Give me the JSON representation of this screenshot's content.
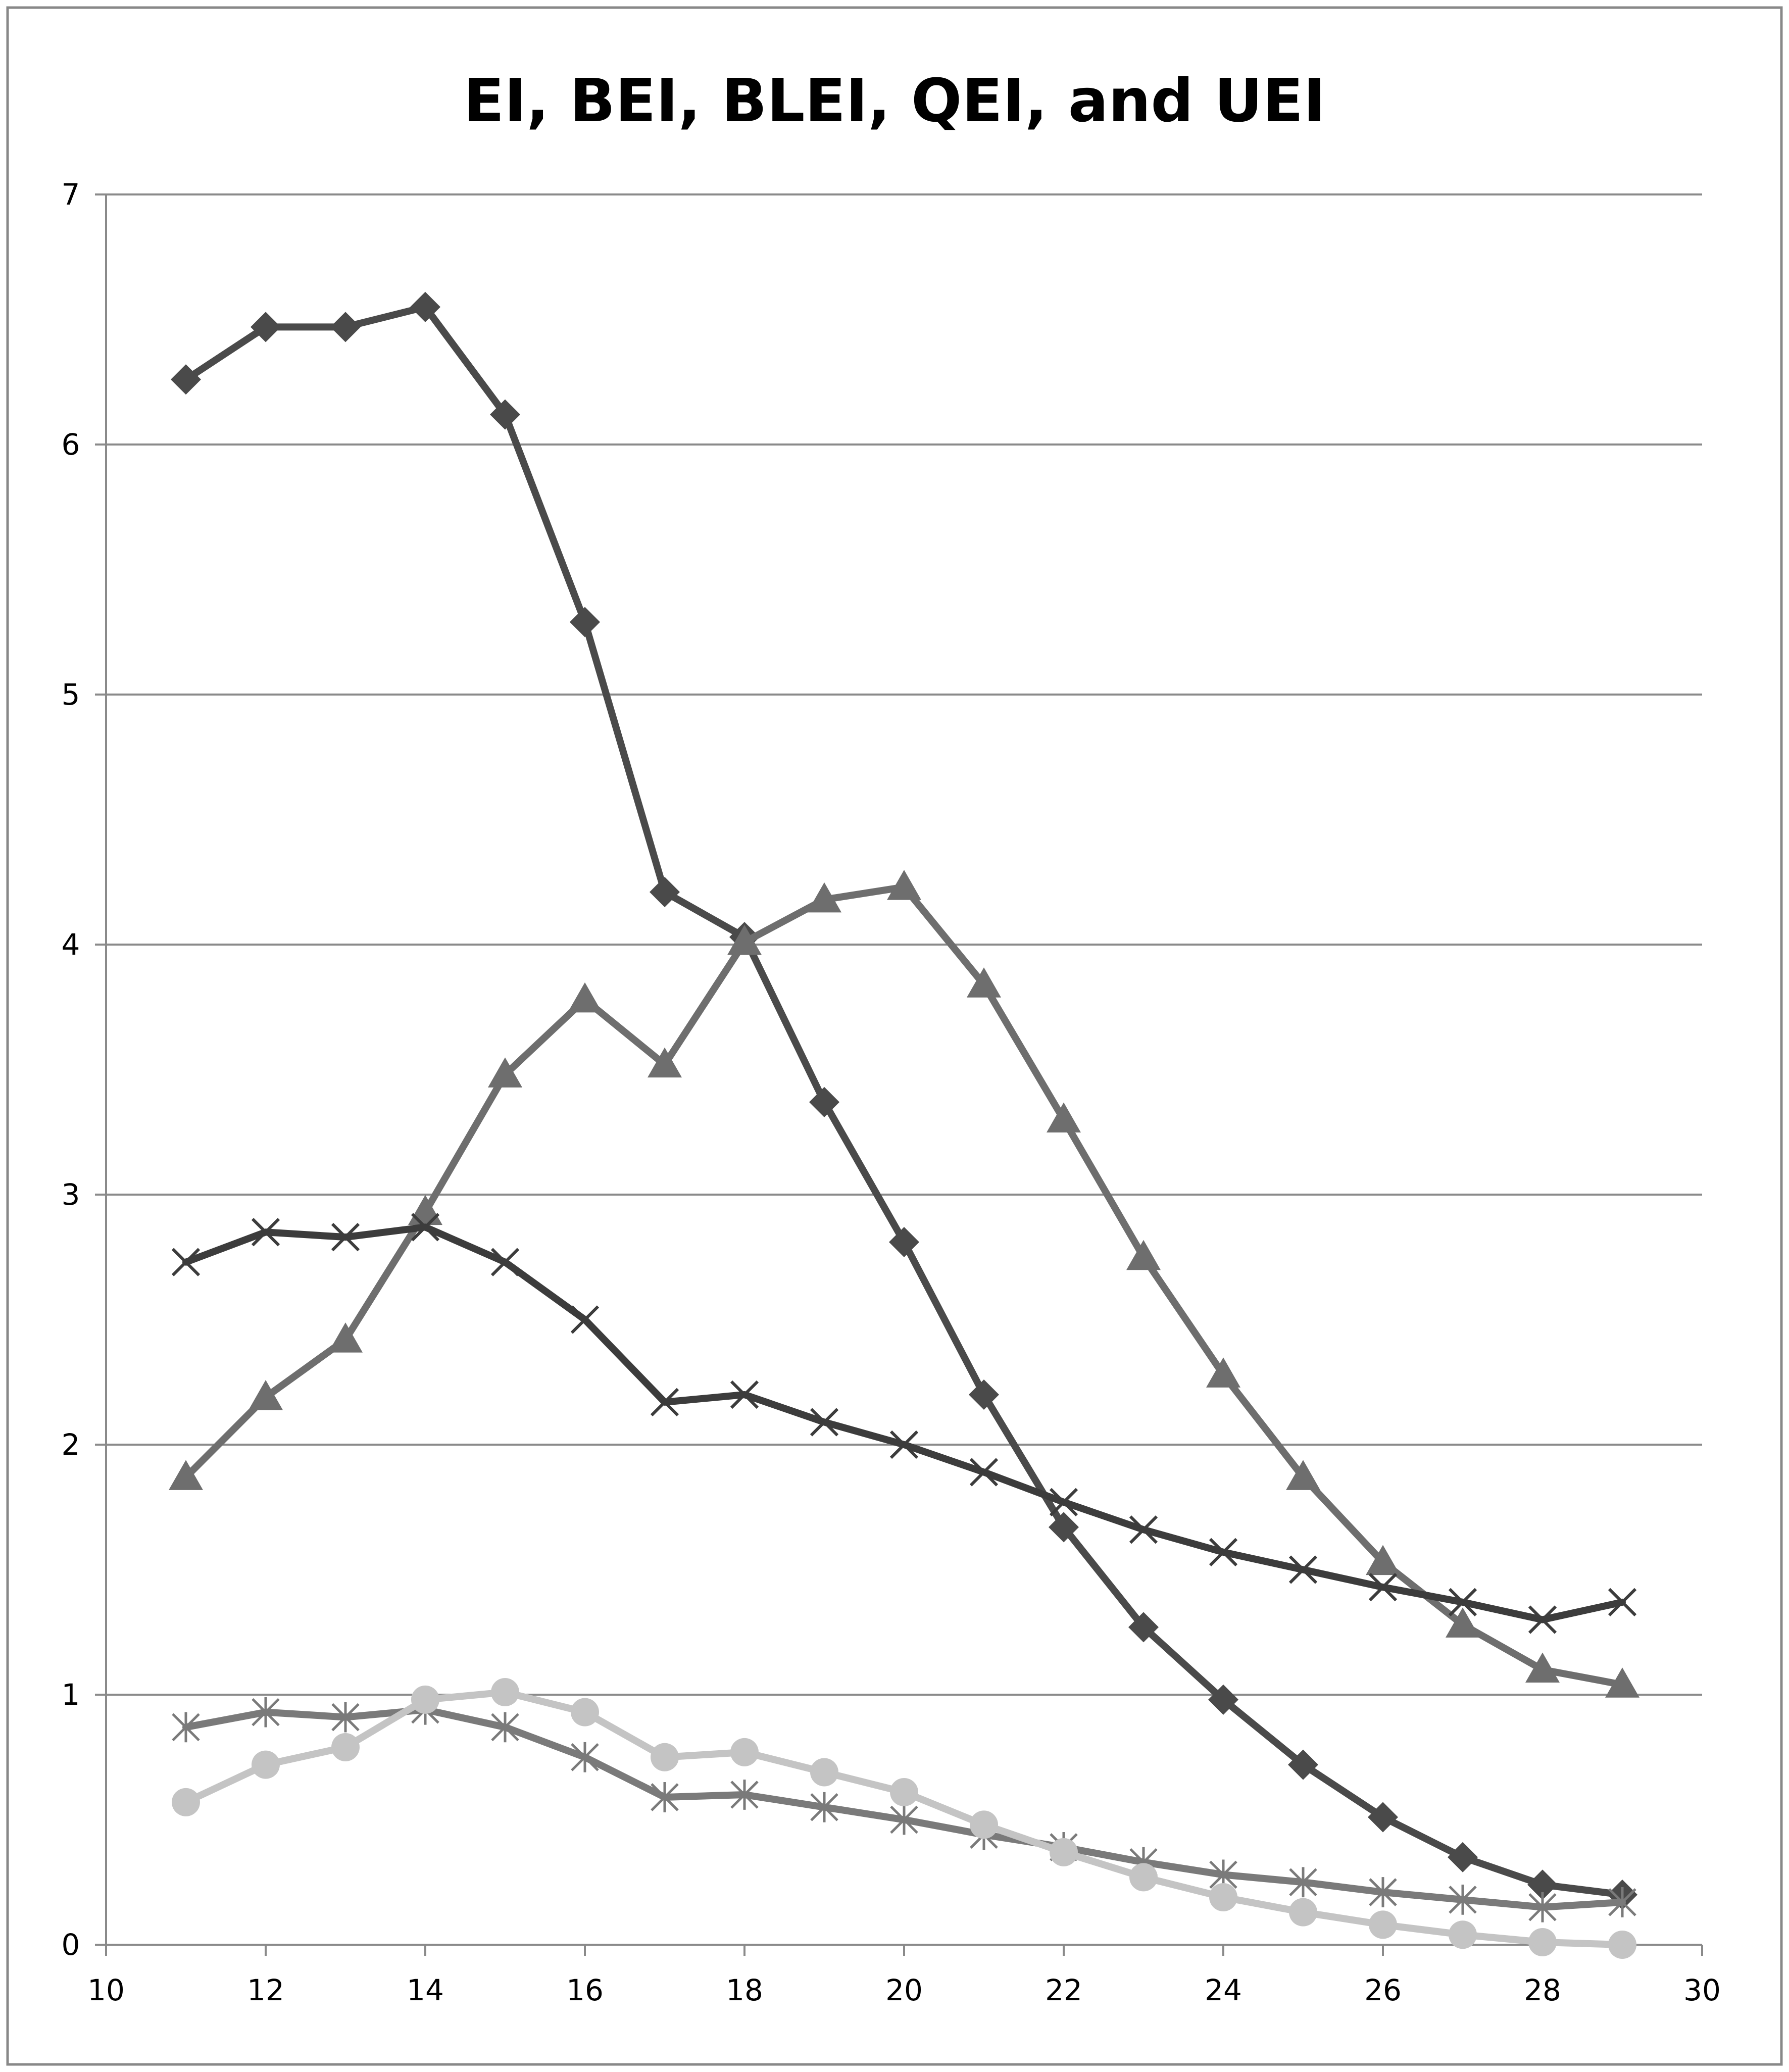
{
  "chart_data": {
    "type": "line",
    "title": "EI, BEI, BLEI, QEI, and UEI",
    "xlabel": "",
    "ylabel": "",
    "xlim": [
      10,
      30
    ],
    "ylim": [
      0,
      7
    ],
    "x_ticks": [
      "10",
      "12",
      "14",
      "16",
      "18",
      "20",
      "22",
      "24",
      "26",
      "28",
      "30"
    ],
    "y_ticks": [
      "0",
      "1",
      "2",
      "3",
      "4",
      "5",
      "6",
      "7"
    ],
    "grid": "horizontal",
    "legend": "none",
    "x": [
      11,
      12,
      13,
      14,
      15,
      16,
      17,
      18,
      19,
      20,
      21,
      22,
      23,
      24,
      25,
      26,
      27,
      28,
      29
    ],
    "series": [
      {
        "marker": "diamond",
        "color": "#4a4a4a",
        "values": [
          6.26,
          6.47,
          6.47,
          6.55,
          6.12,
          5.29,
          4.21,
          4.03,
          3.37,
          2.81,
          2.2,
          1.67,
          1.27,
          0.98,
          0.72,
          0.51,
          0.35,
          0.24,
          0.2
        ]
      },
      {
        "marker": "triangle",
        "color": "#6e6e6e",
        "values": [
          1.87,
          2.19,
          2.42,
          2.93,
          3.48,
          3.78,
          3.52,
          4.01,
          4.18,
          4.23,
          3.84,
          3.3,
          2.75,
          2.28,
          1.87,
          1.53,
          1.28,
          1.1,
          1.04
        ]
      },
      {
        "marker": "x",
        "color": "#3c3c3c",
        "values": [
          2.73,
          2.85,
          2.83,
          2.87,
          2.73,
          2.5,
          2.17,
          2.2,
          2.09,
          2.0,
          1.89,
          1.77,
          1.66,
          1.57,
          1.5,
          1.43,
          1.37,
          1.3,
          1.37
        ]
      },
      {
        "marker": "star",
        "color": "#7a7a7a",
        "values": [
          0.87,
          0.93,
          0.91,
          0.94,
          0.87,
          0.75,
          0.59,
          0.6,
          0.55,
          0.5,
          0.44,
          0.39,
          0.33,
          0.28,
          0.25,
          0.21,
          0.18,
          0.15,
          0.17
        ]
      },
      {
        "marker": "circle",
        "color": "#c4c4c4",
        "values": [
          0.57,
          0.72,
          0.79,
          0.98,
          1.01,
          0.93,
          0.75,
          0.77,
          0.69,
          0.61,
          0.48,
          0.37,
          0.27,
          0.19,
          0.13,
          0.08,
          0.04,
          0.01,
          0.0
        ]
      }
    ]
  }
}
